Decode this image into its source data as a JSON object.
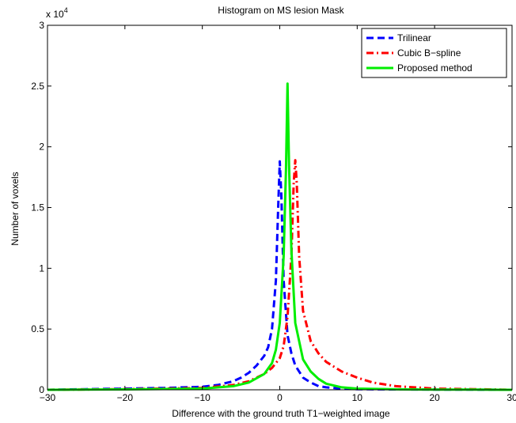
{
  "chart_data": {
    "type": "line",
    "title": "Histogram on MS lesion Mask",
    "xlabel": "Difference with the ground truth T1−weighted image",
    "ylabel": "Number of voxels",
    "y_scale_note": "x 10",
    "y_scale_exponent": "4",
    "xlim": [
      -30,
      30
    ],
    "ylim": [
      0,
      30000
    ],
    "x_ticks": [
      -30,
      -20,
      -10,
      0,
      10,
      20,
      30
    ],
    "x_tick_labels": [
      "−30",
      "−20",
      "−10",
      "0",
      "10",
      "20",
      "30"
    ],
    "y_ticks": [
      0,
      5000,
      10000,
      15000,
      20000,
      25000,
      30000
    ],
    "y_tick_labels": [
      "0",
      "0.5",
      "1",
      "1.5",
      "2",
      "2.5",
      "3"
    ],
    "grid": false,
    "legend_position": "top-right",
    "series": [
      {
        "name": "Trilinear",
        "color": "#0000ff",
        "style": "dashed",
        "x": [
          -30,
          -25,
          -20,
          -15,
          -10,
          -8,
          -6,
          -5,
          -4,
          -3,
          -2,
          -1.5,
          -1,
          -0.5,
          -0.2,
          0,
          0.2,
          0.5,
          1,
          1.5,
          2,
          3,
          4,
          5,
          6,
          8,
          10,
          15,
          20,
          25,
          30
        ],
        "y": [
          0,
          50,
          100,
          150,
          250,
          400,
          700,
          1000,
          1400,
          2000,
          2800,
          3500,
          5000,
          9000,
          15000,
          18800,
          16000,
          9000,
          4500,
          3000,
          2000,
          1000,
          600,
          300,
          200,
          100,
          50,
          30,
          20,
          10,
          0
        ]
      },
      {
        "name": "Cubic B−spline",
        "color": "#ff0000",
        "style": "dashdot",
        "x": [
          -30,
          -20,
          -10,
          -6,
          -4,
          -2,
          -1,
          0,
          0.5,
          1,
          1.5,
          1.8,
          2,
          2.2,
          2.5,
          3,
          4,
          5,
          6,
          8,
          10,
          12,
          15,
          20,
          25,
          30
        ],
        "y": [
          0,
          50,
          150,
          400,
          700,
          1300,
          1800,
          2600,
          3600,
          6000,
          11000,
          17000,
          18900,
          17000,
          11000,
          6500,
          4000,
          3000,
          2300,
          1500,
          1000,
          600,
          300,
          100,
          50,
          0
        ]
      },
      {
        "name": "Proposed method",
        "color": "#00ee00",
        "style": "solid",
        "x": [
          -30,
          -20,
          -10,
          -6,
          -4,
          -2,
          -1,
          -0.5,
          0,
          0.5,
          0.8,
          1,
          1.2,
          1.5,
          2,
          3,
          4,
          5,
          6,
          8,
          10,
          15,
          20,
          25,
          30
        ],
        "y": [
          0,
          30,
          100,
          300,
          600,
          1300,
          2200,
          3300,
          5500,
          11000,
          18000,
          25200,
          18500,
          11500,
          5500,
          2500,
          1500,
          900,
          500,
          200,
          100,
          40,
          20,
          10,
          0
        ]
      }
    ]
  }
}
